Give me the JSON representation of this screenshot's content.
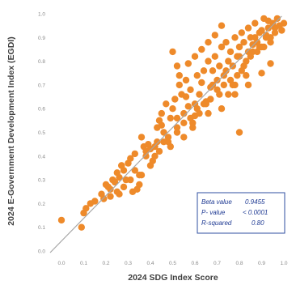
{
  "chart_data": {
    "type": "scatter",
    "title": "",
    "xlabel": "2024 SDG Index Score",
    "ylabel": "2024 E-Government Development Index (EGDI)",
    "xlim": [
      0.0,
      1.0
    ],
    "ylim": [
      0.0,
      1.0
    ],
    "x_ticks": [
      "0.0",
      "0.1",
      "0.2",
      "0.3",
      "0.4",
      "0.5",
      "0.6",
      "0.7",
      "0.8",
      "0.9",
      "1.0"
    ],
    "y_ticks": [
      "0.0",
      "0.1",
      "0.2",
      "0.3",
      "0.4",
      "0.5",
      "0.6",
      "0.7",
      "0.8",
      "0.9",
      "1.0"
    ],
    "grid": false,
    "marker_color": "#ee8a2a",
    "regression_line_color": "#a6a6a6",
    "regression_line": {
      "x": [
        0.0,
        0.99
      ],
      "y": [
        0.0,
        0.99
      ]
    },
    "stats_box": {
      "border_color": "#2f4fa0",
      "rows": [
        {
          "label": "Beta value",
          "value": "0.9455"
        },
        {
          "label": "P- value",
          "value": "< 0.0001"
        },
        {
          "label": "R-squared",
          "value": "0.80"
        }
      ]
    },
    "series": [
      {
        "x": [
          0.0,
          0.09,
          0.1,
          0.13,
          0.11,
          0.15,
          0.18,
          0.19,
          0.2,
          0.21,
          0.22,
          0.23,
          0.24,
          0.25,
          0.26,
          0.27,
          0.28,
          0.3,
          0.31,
          0.33,
          0.22,
          0.26,
          0.29,
          0.32,
          0.35,
          0.36,
          0.38,
          0.39,
          0.4,
          0.41,
          0.42,
          0.43,
          0.43,
          0.44,
          0.45,
          0.46,
          0.47,
          0.48,
          0.49,
          0.5,
          0.51,
          0.52,
          0.53,
          0.54,
          0.55,
          0.56,
          0.57,
          0.58,
          0.59,
          0.6,
          0.61,
          0.62,
          0.63,
          0.64,
          0.65,
          0.66,
          0.67,
          0.68,
          0.69,
          0.7,
          0.71,
          0.72,
          0.73,
          0.74,
          0.75,
          0.76,
          0.77,
          0.78,
          0.79,
          0.8,
          0.81,
          0.82,
          0.83,
          0.84,
          0.85,
          0.86,
          0.87,
          0.88,
          0.89,
          0.9,
          0.91,
          0.92,
          0.93,
          0.94,
          0.95,
          0.96,
          0.97,
          0.98,
          0.99,
          1.0,
          0.33,
          0.35,
          0.4,
          0.44,
          0.37,
          0.31,
          0.28,
          0.25,
          0.27,
          0.34,
          0.48,
          0.52,
          0.55,
          0.58,
          0.61,
          0.64,
          0.67,
          0.7,
          0.73,
          0.76,
          0.79,
          0.82,
          0.85,
          0.88,
          0.91,
          0.94,
          0.53,
          0.57,
          0.6,
          0.63,
          0.66,
          0.69,
          0.72,
          0.75,
          0.78,
          0.81,
          0.84,
          0.87,
          0.9,
          0.93,
          0.96,
          0.52,
          0.5,
          0.56,
          0.62,
          0.68,
          0.74,
          0.8,
          0.86,
          0.92,
          0.98,
          0.8,
          0.46,
          0.42,
          0.38,
          0.36,
          0.45,
          0.49,
          0.52,
          0.55,
          0.6,
          0.65,
          0.71,
          0.77,
          0.83,
          0.89,
          0.94,
          0.59,
          0.66,
          0.72,
          0.78,
          0.84,
          0.9
        ],
        "y": [
          0.13,
          0.1,
          0.16,
          0.2,
          0.18,
          0.21,
          0.24,
          0.22,
          0.28,
          0.27,
          0.26,
          0.3,
          0.29,
          0.33,
          0.31,
          0.36,
          0.34,
          0.37,
          0.39,
          0.41,
          0.23,
          0.24,
          0.3,
          0.25,
          0.28,
          0.32,
          0.4,
          0.45,
          0.43,
          0.38,
          0.44,
          0.46,
          0.52,
          0.55,
          0.58,
          0.5,
          0.62,
          0.48,
          0.56,
          0.6,
          0.64,
          0.52,
          0.7,
          0.66,
          0.58,
          0.72,
          0.61,
          0.68,
          0.54,
          0.62,
          0.74,
          0.66,
          0.71,
          0.76,
          0.63,
          0.8,
          0.69,
          0.76,
          0.82,
          0.72,
          0.78,
          0.86,
          0.74,
          0.88,
          0.8,
          0.84,
          0.78,
          0.9,
          0.82,
          0.86,
          0.92,
          0.88,
          0.8,
          0.94,
          0.9,
          0.84,
          0.96,
          0.88,
          0.92,
          0.86,
          0.98,
          0.9,
          0.94,
          0.88,
          0.96,
          0.92,
          0.98,
          0.95,
          0.93,
          0.96,
          0.34,
          0.32,
          0.36,
          0.42,
          0.44,
          0.3,
          0.27,
          0.25,
          0.36,
          0.26,
          0.46,
          0.5,
          0.54,
          0.56,
          0.6,
          0.62,
          0.64,
          0.68,
          0.7,
          0.72,
          0.74,
          0.78,
          0.82,
          0.84,
          0.86,
          0.9,
          0.74,
          0.79,
          0.82,
          0.85,
          0.88,
          0.91,
          0.95,
          0.66,
          0.7,
          0.76,
          0.84,
          0.9,
          0.93,
          0.97,
          0.94,
          0.78,
          0.84,
          0.65,
          0.58,
          0.7,
          0.76,
          0.82,
          0.87,
          0.91,
          0.95,
          0.5,
          0.46,
          0.4,
          0.42,
          0.48,
          0.53,
          0.44,
          0.56,
          0.48,
          0.57,
          0.62,
          0.66,
          0.7,
          0.74,
          0.86,
          0.79,
          0.52,
          0.58,
          0.6,
          0.66,
          0.7,
          0.75
        ]
      }
    ]
  }
}
